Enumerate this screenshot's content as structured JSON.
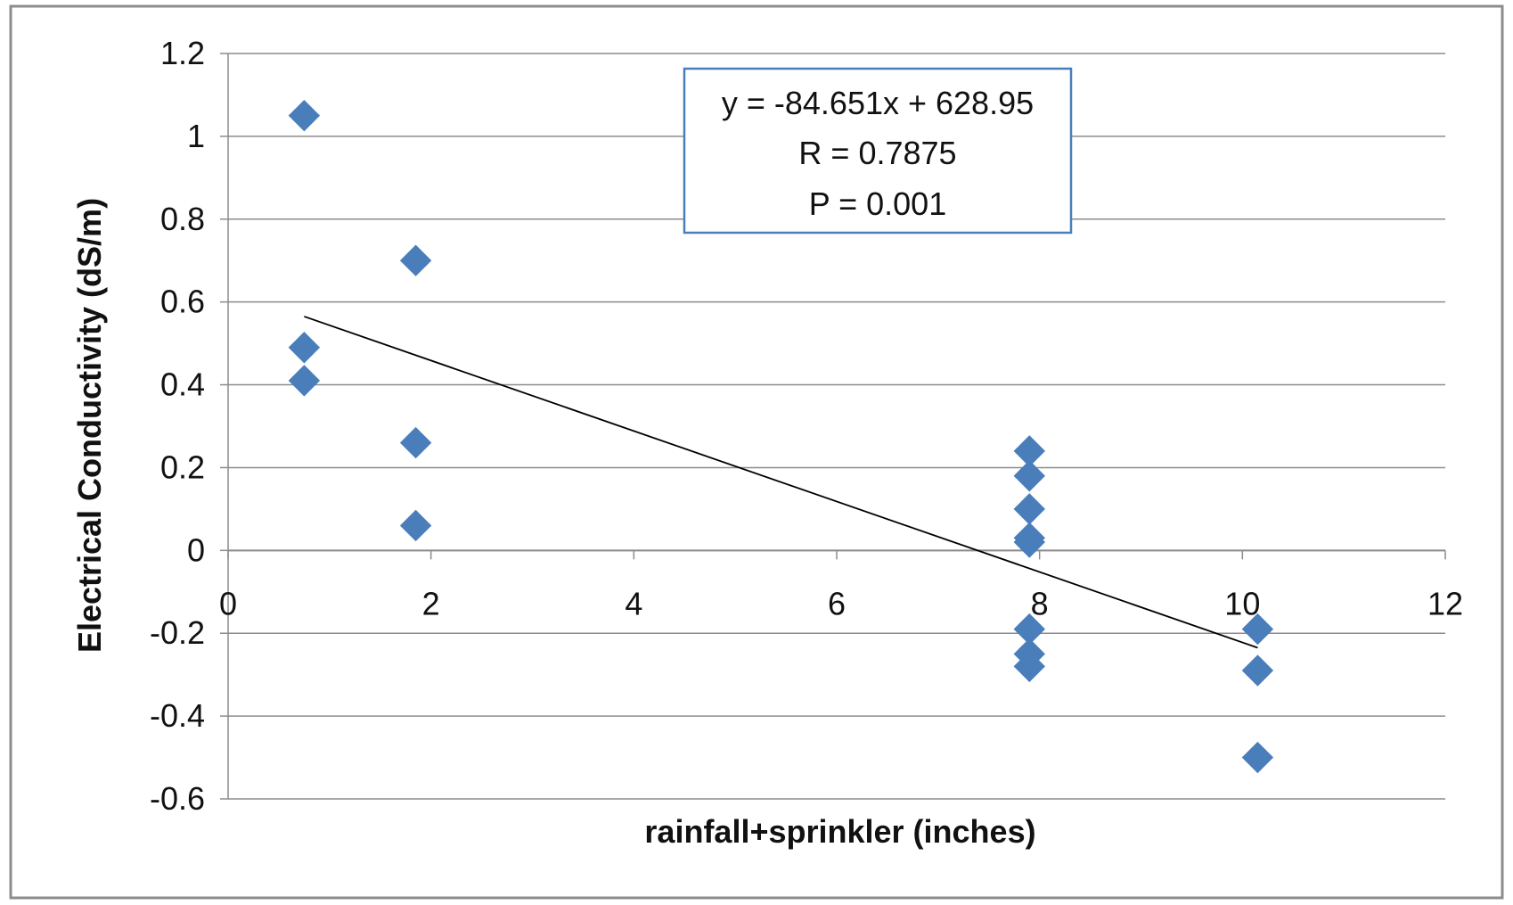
{
  "chart_data": {
    "type": "scatter",
    "title": "",
    "xlabel": "rainfall+sprinkler  (inches)",
    "ylabel": "Electrical Conductivity (dS/m)",
    "xlim": [
      0,
      12
    ],
    "ylim": [
      -0.6,
      1.2
    ],
    "x_ticks": [
      0,
      2,
      4,
      6,
      8,
      10,
      12
    ],
    "y_ticks": [
      1.2,
      1,
      0.8,
      0.6,
      0.4,
      0.2,
      0,
      -0.2,
      -0.4,
      -0.6
    ],
    "grid": "horizontal",
    "legend": "none",
    "series": [
      {
        "marker": "diamond",
        "color": "#4a7ebb",
        "points": [
          {
            "x": 0.75,
            "y": 1.05
          },
          {
            "x": 0.75,
            "y": 0.49
          },
          {
            "x": 0.75,
            "y": 0.41
          },
          {
            "x": 1.85,
            "y": 0.7
          },
          {
            "x": 1.85,
            "y": 0.26
          },
          {
            "x": 1.85,
            "y": 0.06
          },
          {
            "x": 7.9,
            "y": 0.24
          },
          {
            "x": 7.9,
            "y": 0.18
          },
          {
            "x": 7.9,
            "y": 0.1
          },
          {
            "x": 7.9,
            "y": 0.03
          },
          {
            "x": 7.9,
            "y": 0.02
          },
          {
            "x": 7.9,
            "y": -0.19
          },
          {
            "x": 7.9,
            "y": -0.25
          },
          {
            "x": 7.9,
            "y": -0.28
          },
          {
            "x": 10.15,
            "y": -0.19
          },
          {
            "x": 10.15,
            "y": -0.29
          },
          {
            "x": 10.15,
            "y": -0.5
          }
        ]
      }
    ],
    "trendline": {
      "color": "#000000",
      "points": [
        {
          "x": 0.75,
          "y": 0.565
        },
        {
          "x": 10.15,
          "y": -0.235
        }
      ]
    },
    "annotation": {
      "lines": [
        "y = -84.651x + 628.95",
        "R = 0.7875",
        "P = 0.001"
      ],
      "border_color": "#4a7ebb"
    }
  }
}
